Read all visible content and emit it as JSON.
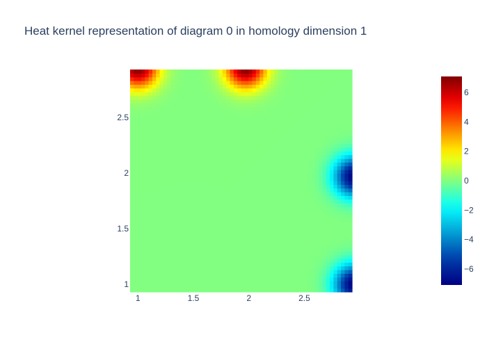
{
  "chart_data": {
    "type": "heatmap",
    "title": "Heat kernel representation of diagram 0 in homology dimension 1",
    "x_ticks": [
      "1",
      "1.5",
      "2",
      "2.5"
    ],
    "x_tick_values": [
      1,
      1.5,
      2,
      2.5
    ],
    "y_ticks": [
      "1",
      "1.5",
      "2",
      "2.5"
    ],
    "y_tick_values": [
      1,
      1.5,
      2,
      2.5
    ],
    "xlim": [
      0.93,
      2.93
    ],
    "ylim": [
      0.93,
      2.93
    ],
    "grid_size": [
      60,
      60
    ],
    "colorscale": "jet",
    "zmin": -7.1,
    "zmax": 7.1,
    "colorbar_ticks": [
      "6",
      "4",
      "2",
      "0",
      "−2",
      "−4",
      "−6"
    ],
    "colorbar_tick_values": [
      6,
      4,
      2,
      0,
      -2,
      -4,
      -6
    ],
    "hot_spots": [
      {
        "x": 1.0,
        "y": 2.95,
        "amplitude": 7.1,
        "sigma": 0.13
      },
      {
        "x": 1.97,
        "y": 2.95,
        "amplitude": 7.1,
        "sigma": 0.13
      },
      {
        "x": 2.95,
        "y": 1.97,
        "amplitude": -7.1,
        "sigma": 0.13
      },
      {
        "x": 2.95,
        "y": 1.0,
        "amplitude": -7.1,
        "sigma": 0.13
      }
    ]
  }
}
